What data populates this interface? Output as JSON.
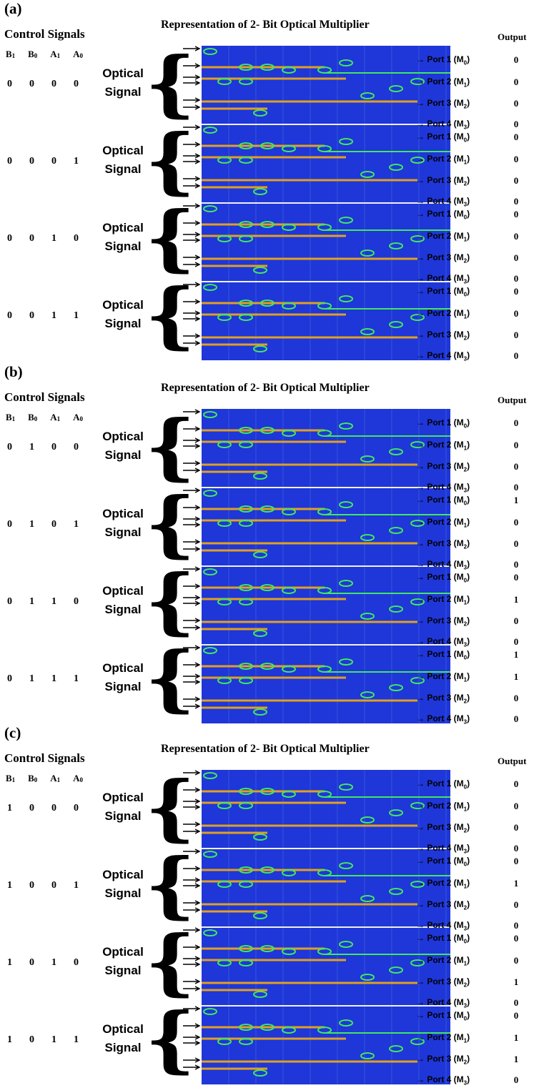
{
  "panels": [
    {
      "label": "(a)",
      "title": "Representation of 2- Bit Optical Multiplier",
      "control_title": "Control Signals",
      "output_title": "Output",
      "bit_headers": [
        "B1",
        "B0",
        "A1",
        "A0"
      ],
      "optical_line1": "Optical",
      "optical_line2": "Signal",
      "ports": [
        "Port 1 (M0)",
        "Port 2 (M1)",
        "Port 3 (M2)",
        "Port 4 (M3)"
      ],
      "rows": [
        {
          "bits": [
            "0",
            "0",
            "0",
            "0"
          ],
          "outputs": [
            "0",
            "0",
            "0",
            "0"
          ]
        },
        {
          "bits": [
            "0",
            "0",
            "0",
            "1"
          ],
          "outputs": [
            "0",
            "0",
            "0",
            "0"
          ]
        },
        {
          "bits": [
            "0",
            "0",
            "1",
            "0"
          ],
          "outputs": [
            "0",
            "0",
            "0",
            "0"
          ]
        },
        {
          "bits": [
            "0",
            "0",
            "1",
            "1"
          ],
          "outputs": [
            "0",
            "0",
            "0",
            "0"
          ]
        }
      ]
    },
    {
      "label": "(b)",
      "title": "Representation of 2- Bit Optical Multiplier",
      "control_title": "Control Signals",
      "output_title": "Output",
      "bit_headers": [
        "B1",
        "B0",
        "A1",
        "A0"
      ],
      "optical_line1": "Optical",
      "optical_line2": "Signal",
      "ports": [
        "Port 1 (M0)",
        "Port 2 (M1)",
        "Port 3 (M2)",
        "Port 4 (M3)"
      ],
      "rows": [
        {
          "bits": [
            "0",
            "1",
            "0",
            "0"
          ],
          "outputs": [
            "0",
            "0",
            "0",
            "0"
          ]
        },
        {
          "bits": [
            "0",
            "1",
            "0",
            "1"
          ],
          "outputs": [
            "1",
            "0",
            "0",
            "0"
          ]
        },
        {
          "bits": [
            "0",
            "1",
            "1",
            "0"
          ],
          "outputs": [
            "0",
            "1",
            "0",
            "0"
          ]
        },
        {
          "bits": [
            "0",
            "1",
            "1",
            "1"
          ],
          "outputs": [
            "1",
            "1",
            "0",
            "0"
          ]
        }
      ]
    },
    {
      "label": "(c)",
      "title": "Representation of 2- Bit Optical Multiplier",
      "control_title": "Control Signals",
      "output_title": "Output",
      "bit_headers": [
        "B1",
        "B0",
        "A1",
        "A0"
      ],
      "optical_line1": "Optical",
      "optical_line2": "Signal",
      "ports": [
        "Port 1 (M0)",
        "Port 2 (M1)",
        "Port 3 (M2)",
        "Port 4 (M3)"
      ],
      "rows": [
        {
          "bits": [
            "1",
            "0",
            "0",
            "0"
          ],
          "outputs": [
            "0",
            "0",
            "0",
            "0"
          ]
        },
        {
          "bits": [
            "1",
            "0",
            "0",
            "1"
          ],
          "outputs": [
            "0",
            "1",
            "0",
            "0"
          ]
        },
        {
          "bits": [
            "1",
            "0",
            "1",
            "0"
          ],
          "outputs": [
            "0",
            "0",
            "1",
            "0"
          ]
        },
        {
          "bits": [
            "1",
            "0",
            "1",
            "1"
          ],
          "outputs": [
            "0",
            "1",
            "1",
            "0"
          ]
        }
      ]
    }
  ],
  "colors": {
    "simulation_background": "#1f36d8",
    "waveguide_main": "#e0a020",
    "waveguide_coupler": "#40e860",
    "grid_line": "#3a5fe0",
    "separator": "#f0f0f0"
  }
}
